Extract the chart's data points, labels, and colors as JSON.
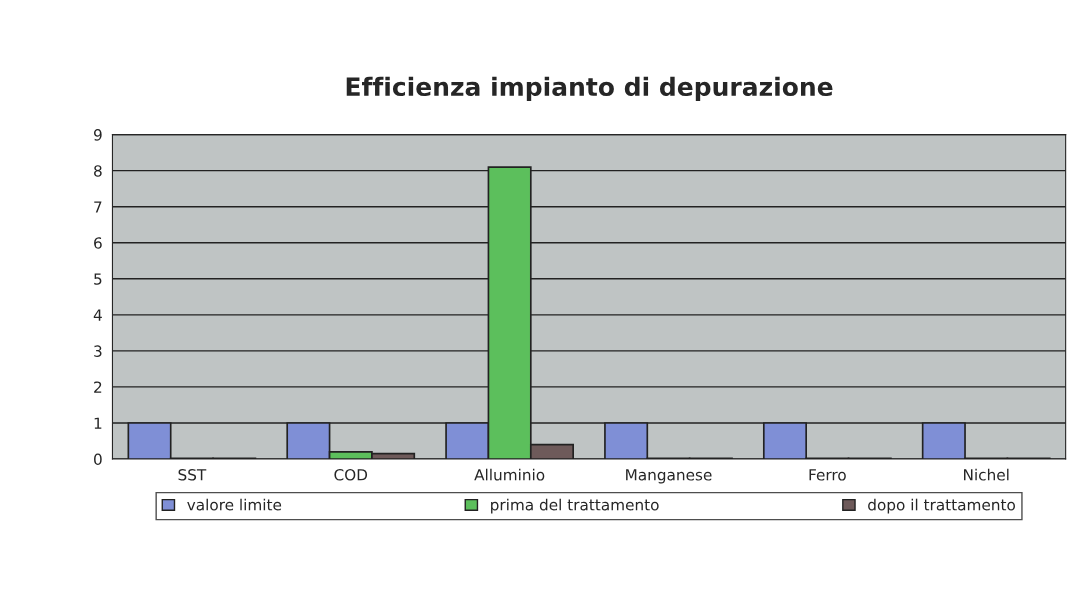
{
  "chart_data": {
    "type": "bar",
    "title": "Efficienza impianto di depurazione",
    "categories": [
      "SST",
      "COD",
      "Alluminio",
      "Manganese",
      "Ferro",
      "Nichel"
    ],
    "series": [
      {
        "name": "valore limite",
        "color": "#7f8fd6",
        "values": [
          1,
          1,
          1,
          1,
          1,
          1
        ]
      },
      {
        "name": "prima del trattamento",
        "color": "#5cbf5c",
        "values": [
          0.02,
          0.2,
          8.1,
          0.02,
          0.02,
          0.02
        ]
      },
      {
        "name": "dopo il trattamento",
        "color": "#6e5a5a",
        "values": [
          0.02,
          0.15,
          0.4,
          0.02,
          0.02,
          0.02
        ]
      }
    ],
    "ylim": [
      0,
      9
    ],
    "yticks": [
      0,
      1,
      2,
      3,
      4,
      5,
      6,
      7,
      8,
      9
    ],
    "grid": "y",
    "legend": "bottom"
  }
}
